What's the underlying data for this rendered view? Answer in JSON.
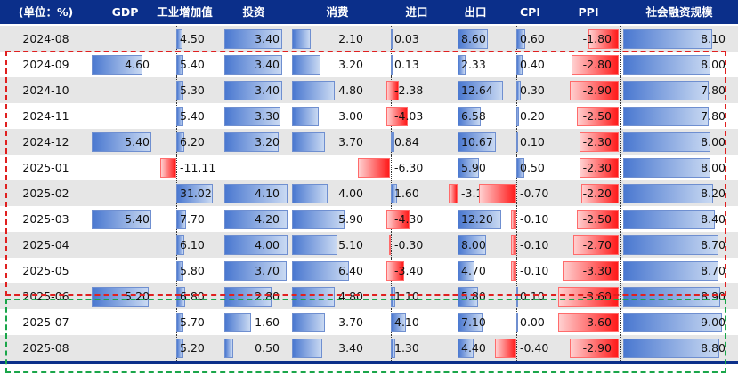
{
  "headers": [
    "(单位：%)",
    "GDP",
    "工业增加值",
    "投资",
    "消费",
    "进口",
    "出口",
    "CPI",
    "PPI",
    "社会融资规模"
  ],
  "rows": [
    {
      "date": "2024-08",
      "values": [
        "",
        "4.50",
        "3.40",
        "2.10",
        "0.03",
        "8.60",
        "0.60",
        "-1.80",
        "8.10"
      ]
    },
    {
      "date": "2024-09",
      "values": [
        "4.60",
        "5.40",
        "3.40",
        "3.20",
        "0.13",
        "2.33",
        "0.40",
        "-2.80",
        "8.00"
      ]
    },
    {
      "date": "2024-10",
      "values": [
        "",
        "5.30",
        "3.40",
        "4.80",
        "-2.38",
        "12.64",
        "0.30",
        "-2.90",
        "7.80"
      ]
    },
    {
      "date": "2024-11",
      "values": [
        "",
        "5.40",
        "3.30",
        "3.00",
        "-4.03",
        "6.58",
        "0.20",
        "-2.50",
        "7.80"
      ]
    },
    {
      "date": "2024-12",
      "values": [
        "5.40",
        "6.20",
        "3.20",
        "3.70",
        "0.84",
        "10.67",
        "0.10",
        "-2.30",
        "8.00"
      ]
    },
    {
      "date": "2025-01",
      "values": [
        "",
        "-11.11",
        "",
        "",
        "-6.30",
        "5.90",
        "0.50",
        "-2.30",
        "8.00"
      ]
    },
    {
      "date": "2025-02",
      "values": [
        "",
        "31.02",
        "4.10",
        "4.00",
        "1.60",
        "-3.10",
        "-0.70",
        "-2.20",
        "8.20"
      ]
    },
    {
      "date": "2025-03",
      "values": [
        "5.40",
        "7.70",
        "4.20",
        "5.90",
        "-4.30",
        "12.20",
        "-0.10",
        "-2.50",
        "8.40"
      ]
    },
    {
      "date": "2025-04",
      "values": [
        "",
        "6.10",
        "4.00",
        "5.10",
        "-0.30",
        "8.00",
        "-0.10",
        "-2.70",
        "8.70"
      ]
    },
    {
      "date": "2025-05",
      "values": [
        "",
        "5.80",
        "3.70",
        "6.40",
        "-3.40",
        "4.70",
        "-0.10",
        "-3.30",
        "8.70"
      ]
    },
    {
      "date": "2025-06",
      "values": [
        "5.20",
        "6.80",
        "2.80",
        "4.80",
        "1.10",
        "5.80",
        "0.10",
        "-3.60",
        "8.90"
      ]
    },
    {
      "date": "2025-07",
      "values": [
        "",
        "5.70",
        "1.60",
        "3.70",
        "4.10",
        "7.10",
        "0.00",
        "-3.60",
        "9.00"
      ]
    },
    {
      "date": "2025-08",
      "values": [
        "",
        "5.20",
        "0.50",
        "3.40",
        "1.30",
        "4.40",
        "-0.40",
        "-2.90",
        "8.80"
      ]
    }
  ],
  "colors": {
    "header_bg": "#0b2f8a",
    "header_text": "#ffffff",
    "row_shade": "#e6e6e6",
    "row_plain": "#ffffff",
    "positive_bar": "#4a78d0",
    "negative_bar": "#ff1a1a",
    "red_frame": "#e02020",
    "green_frame": "#1aa64a"
  }
}
